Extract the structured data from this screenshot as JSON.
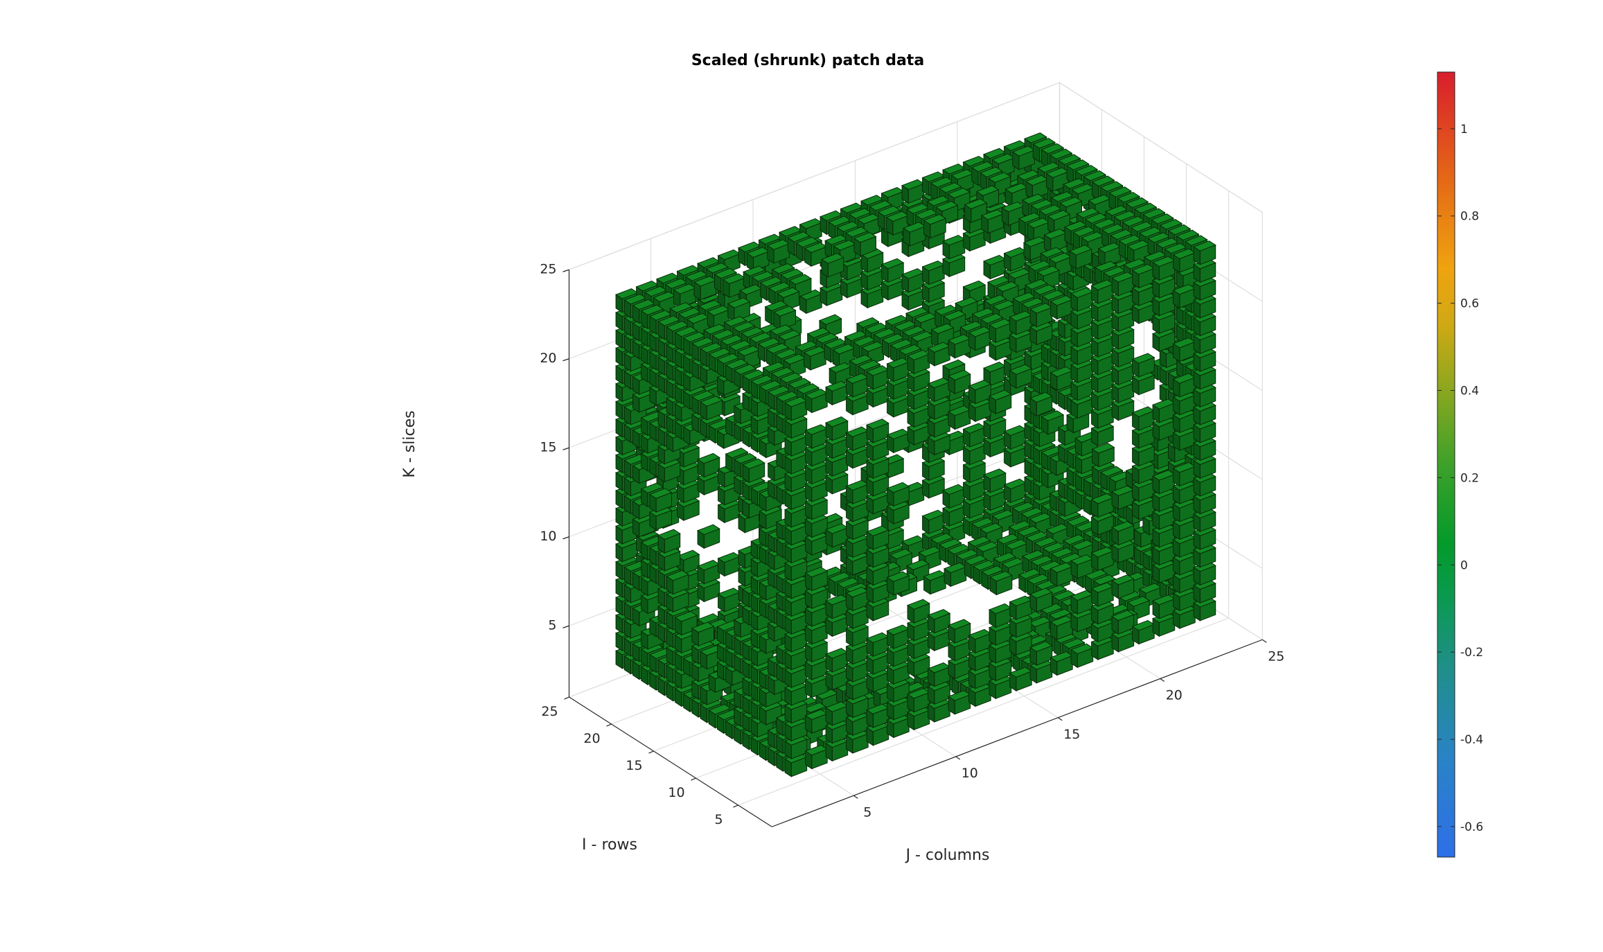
{
  "chart_data": {
    "type": "scatter",
    "title": "Scaled (shrunk) patch data",
    "xlabel": "J - columns",
    "ylabel": "I - rows",
    "zlabel": "K - slices",
    "xlim": [
      1,
      25
    ],
    "ylim": [
      1,
      25
    ],
    "zlim": [
      1,
      25
    ],
    "xticks": [
      "5",
      "10",
      "15",
      "20",
      "25"
    ],
    "yticks": [
      "5",
      "10",
      "15",
      "20",
      "25"
    ],
    "zticks": [
      "5",
      "10",
      "15",
      "20",
      "25"
    ],
    "grid": true,
    "view": "3d",
    "marker": "shrunk cube patch per voxel",
    "colormap": "turbo",
    "color_range": [
      -0.67,
      1.13
    ],
    "colorbar": {
      "location": "right",
      "ticks": [
        "-0.6",
        "-0.4",
        "-0.2",
        "0",
        "0.2",
        "0.4",
        "0.6",
        "0.8",
        "1"
      ]
    },
    "voxel_color_value_approx": 0.0,
    "structure": "hollow cubic shell spanning about 3 to 23 on each axis, with a round hole in the middle of each face",
    "colors": {
      "voxel_face": "#0f7a1e",
      "voxel_edge": "#0a2a0a"
    }
  }
}
